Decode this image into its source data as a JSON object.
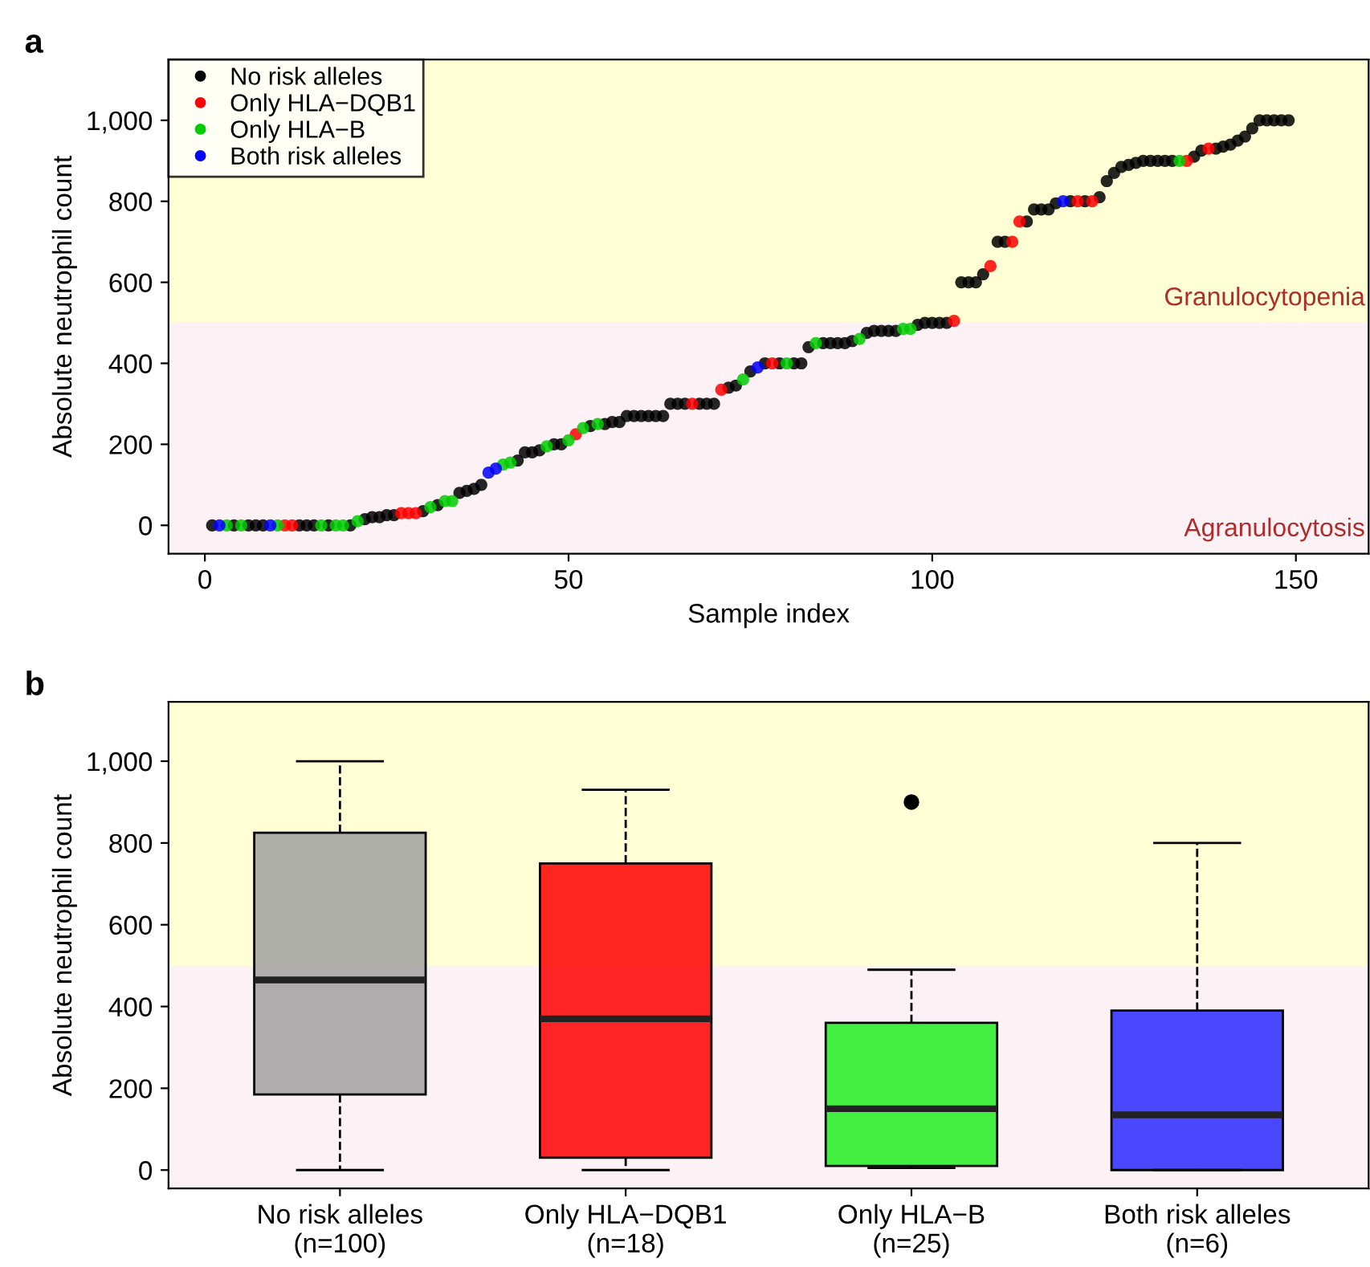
{
  "chart_data": [
    {
      "type": "scatter",
      "title": "a",
      "xlabel": "Sample index",
      "ylabel": "Absolute neutrophil count",
      "xlim": [
        -5,
        160
      ],
      "xticks": [
        0,
        50,
        100,
        150
      ],
      "ylim": [
        -70,
        1150
      ],
      "yticks": [
        0,
        200,
        400,
        600,
        800,
        {
          "value": 1000,
          "label": "1,000"
        }
      ],
      "marker": "circle",
      "legend": "top left",
      "grid": false,
      "bands": [
        {
          "axis": "y",
          "from": -70,
          "to": 500,
          "label": "Agranulocytosis",
          "color": "#fcf2f6"
        },
        {
          "axis": "y",
          "from": 500,
          "to": 1150,
          "label": "Granulocytopenia",
          "color": "#ffffd5"
        }
      ],
      "series": [
        {
          "name": "No risk alleles",
          "color": "#000000",
          "x": [
            1,
            4,
            6,
            7,
            8,
            13,
            14,
            15,
            17,
            20,
            22,
            23,
            24,
            25,
            26,
            30,
            32,
            35,
            36,
            37,
            38,
            43,
            44,
            45,
            46,
            48,
            49,
            53,
            55,
            56,
            57,
            58,
            59,
            60,
            61,
            62,
            63,
            64,
            65,
            66,
            68,
            69,
            70,
            72,
            73,
            75,
            77,
            79,
            81,
            82,
            83,
            85,
            86,
            87,
            88,
            89,
            91,
            92,
            93,
            94,
            95,
            98,
            99,
            100,
            101,
            102,
            104,
            105,
            106,
            107,
            109,
            110,
            113,
            114,
            115,
            116,
            117,
            119,
            121,
            123,
            124,
            125,
            126,
            127,
            128,
            129,
            130,
            131,
            132,
            133,
            136,
            137,
            139,
            140,
            141,
            142,
            143,
            144,
            145,
            146,
            147,
            148,
            149
          ],
          "values": [
            0,
            0,
            0,
            0,
            0,
            0,
            0,
            0,
            0,
            0,
            15,
            20,
            20,
            25,
            25,
            35,
            50,
            80,
            85,
            90,
            100,
            160,
            180,
            180,
            185,
            200,
            200,
            245,
            250,
            255,
            255,
            270,
            270,
            270,
            270,
            270,
            270,
            300,
            300,
            300,
            300,
            300,
            300,
            340,
            345,
            380,
            400,
            400,
            400,
            400,
            440,
            450,
            450,
            450,
            450,
            455,
            475,
            480,
            480,
            480,
            480,
            495,
            500,
            500,
            500,
            500,
            600,
            600,
            600,
            620,
            700,
            700,
            750,
            780,
            780,
            780,
            795,
            800,
            800,
            810,
            850,
            870,
            885,
            890,
            895,
            900,
            900,
            900,
            900,
            900,
            910,
            925,
            930,
            935,
            940,
            950,
            960,
            980,
            1000,
            1000,
            1000,
            1000,
            1000
          ]
        },
        {
          "name": "Only HLA−DQB1",
          "color": "#ff0000",
          "x": [
            11,
            12,
            27,
            28,
            29,
            51,
            67,
            71,
            78,
            103,
            108,
            111,
            112,
            120,
            122,
            135,
            138
          ],
          "values": [
            0,
            0,
            30,
            30,
            30,
            225,
            300,
            335,
            400,
            505,
            640,
            700,
            750,
            800,
            800,
            900,
            930
          ]
        },
        {
          "name": "Only HLA−B",
          "color": "#00cd00",
          "x": [
            3,
            5,
            10,
            16,
            18,
            19,
            21,
            31,
            33,
            34,
            41,
            42,
            47,
            50,
            52,
            54,
            74,
            80,
            84,
            90,
            96,
            97,
            134
          ],
          "values": [
            0,
            0,
            0,
            0,
            0,
            0,
            10,
            45,
            60,
            60,
            150,
            155,
            195,
            210,
            240,
            250,
            360,
            400,
            450,
            460,
            485,
            485,
            900
          ]
        },
        {
          "name": "Both risk alleles",
          "color": "#0000ff",
          "x": [
            2,
            9,
            39,
            40,
            76,
            118
          ],
          "values": [
            0,
            0,
            130,
            140,
            390,
            800
          ]
        }
      ]
    },
    {
      "type": "box",
      "title": "b",
      "ylabel": "Absolute neutrophil count",
      "ylim": [
        -45,
        1145
      ],
      "yticks": [
        0,
        200,
        400,
        600,
        800,
        {
          "value": 1000,
          "label": "1,000"
        }
      ],
      "grid": false,
      "categories": [
        "No risk alleles\n(n=100)",
        "Only HLA−DQB1\n(n=18)",
        "Only HLA−B\n(n=25)",
        "Both risk alleles\n(n=6)"
      ],
      "colors": [
        "#a0a0a0",
        "#ff0000",
        "#22f022",
        "#2a2aff"
      ],
      "bands": [
        {
          "axis": "y",
          "from": -45,
          "to": 500,
          "color": "#fcf2f6"
        },
        {
          "axis": "y",
          "from": 500,
          "to": 1145,
          "color": "#ffffd5"
        }
      ],
      "boxes": [
        {
          "low": 0,
          "q1": 185,
          "median": 465,
          "q3": 825,
          "high": 1000
        },
        {
          "low": 0,
          "q1": 30,
          "median": 370,
          "q3": 750,
          "high": 930
        },
        {
          "low": 5,
          "q1": 10,
          "median": 150,
          "q3": 360,
          "high": 490,
          "outliers": [
            900
          ]
        },
        {
          "low": 0,
          "q1": 0,
          "median": 135,
          "q3": 390,
          "high": 800
        }
      ]
    }
  ]
}
